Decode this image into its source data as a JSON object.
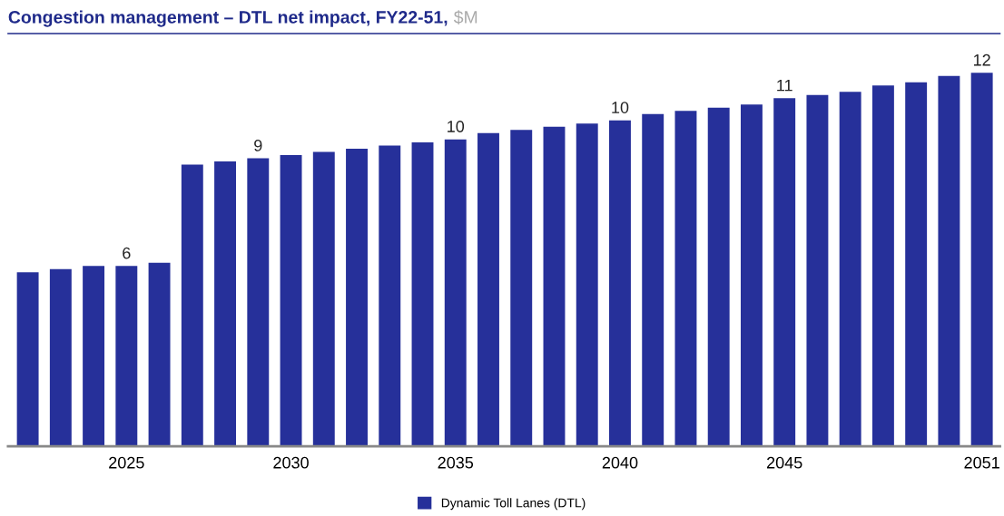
{
  "chart_data": {
    "type": "bar",
    "title": "Congestion management – DTL net impact, FY22-51,",
    "subtitle": "$M",
    "categories": [
      null,
      null,
      null,
      "2025",
      null,
      null,
      null,
      null,
      "2030",
      null,
      null,
      null,
      null,
      "2035",
      null,
      null,
      null,
      null,
      "2040",
      null,
      null,
      null,
      null,
      "2045",
      null,
      null,
      null,
      null,
      null,
      "2051"
    ],
    "series": [
      {
        "name": "Dynamic Toll Lanes (DTL)",
        "color": "#26309a",
        "values": [
          5.5,
          5.6,
          5.7,
          5.7,
          5.8,
          8.9,
          9.0,
          9.1,
          9.2,
          9.3,
          9.4,
          9.5,
          9.6,
          9.7,
          9.9,
          10.0,
          10.1,
          10.2,
          10.3,
          10.5,
          10.6,
          10.7,
          10.8,
          11.0,
          11.1,
          11.2,
          11.4,
          11.5,
          11.7,
          11.8
        ],
        "value_labels": [
          null,
          null,
          null,
          "6",
          null,
          null,
          null,
          "9",
          null,
          null,
          null,
          null,
          null,
          "10",
          null,
          null,
          null,
          null,
          "10",
          null,
          null,
          null,
          null,
          "11",
          null,
          null,
          null,
          null,
          null,
          "12"
        ]
      }
    ],
    "tick_labels": "x",
    "grid": false,
    "legend": "bottom"
  }
}
